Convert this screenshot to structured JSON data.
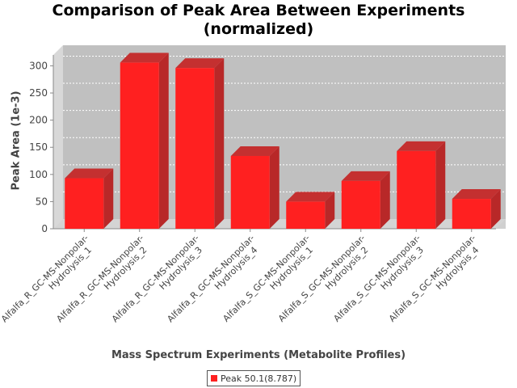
{
  "chart_data": {
    "type": "bar",
    "title": "Comparison of Peak Area Between Experiments\n(normalized)",
    "xlabel": "Mass Spectrum Experiments (Metabolite Profiles)",
    "ylabel": "Peak Area (1e-3)",
    "ylim": [
      0,
      320
    ],
    "yticks": [
      0,
      50,
      100,
      150,
      200,
      250,
      300
    ],
    "grid": true,
    "legend_position": "bottom",
    "categories": [
      [
        "Alfalfa_R_GC-MS-Nonpolar-",
        "Hydrolysis_1"
      ],
      [
        "Alfalfa_R_GC-MS-Nonpolar-",
        "Hydrolysis_2"
      ],
      [
        "Alfalfa_R_GC-MS-Nonpolar-",
        "Hydrolysis_3"
      ],
      [
        "Alfalfa_R_GC-MS-Nonpolar-",
        "Hydrolysis_4"
      ],
      [
        "Alfalfa_S_GC-MS-Nonpolar-",
        "Hydrolysis_1"
      ],
      [
        "Alfalfa_S_GC-MS-Nonpolar-",
        "Hydrolysis_2"
      ],
      [
        "Alfalfa_S_GC-MS-Nonpolar-",
        "Hydrolysis_3"
      ],
      [
        "Alfalfa_S_GC-MS-Nonpolar-",
        "Hydrolysis_4"
      ]
    ],
    "series": [
      {
        "name": "Peak 50.1(8.787)",
        "color": "#ff2020",
        "values": [
          93,
          306,
          296,
          134,
          50,
          88,
          143,
          55
        ]
      }
    ]
  }
}
